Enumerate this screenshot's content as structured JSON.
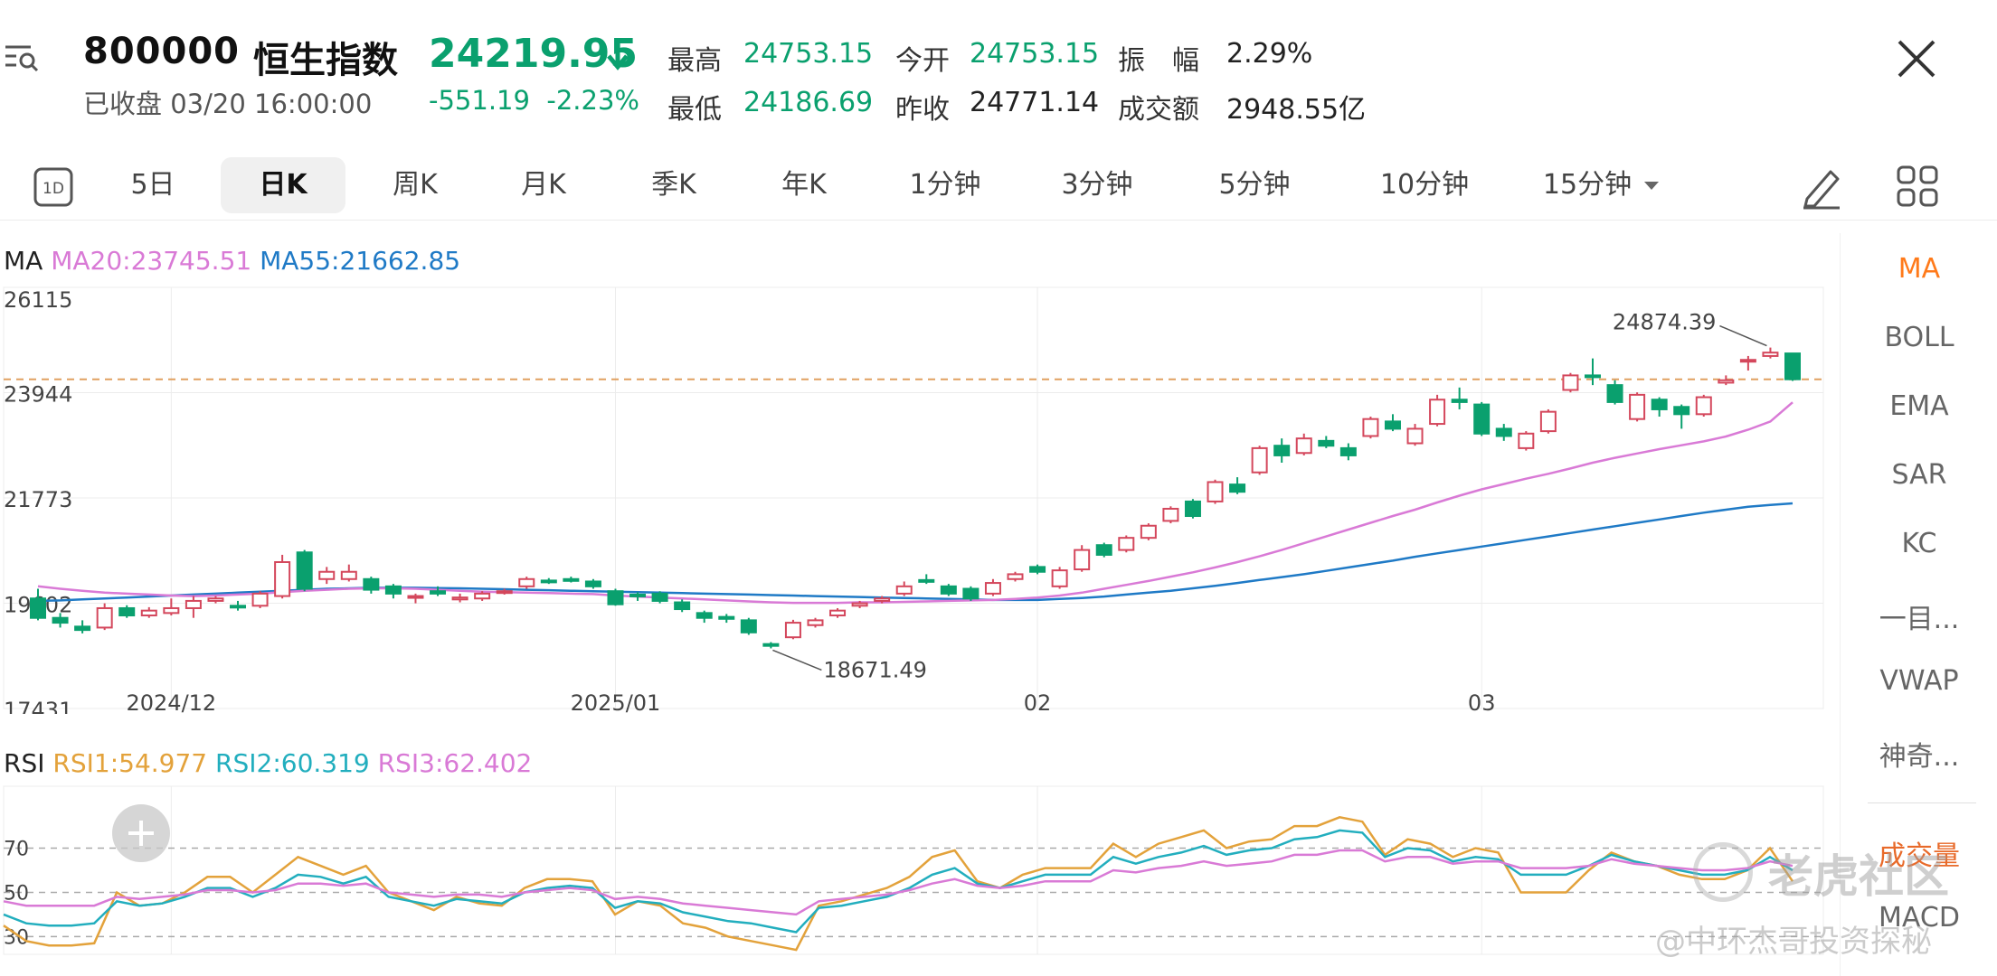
{
  "header": {
    "code": "800000",
    "name": "恒生指数",
    "status": "已收盘",
    "time": "03/20 16:00:00",
    "price": "24219.95",
    "change": "-551.19",
    "change_pct": "-2.23%",
    "stats": [
      {
        "label": "最高",
        "value": "24753.15"
      },
      {
        "label": "今开",
        "value": "24753.15"
      },
      {
        "label": "振　幅",
        "value": "2.29%"
      },
      {
        "label": "最低",
        "value": "24186.69"
      },
      {
        "label": "昨收",
        "value": "24771.14"
      },
      {
        "label": "成交额",
        "value": "2948.55亿"
      }
    ],
    "colors": {
      "down": "#0aa06e",
      "up": "#d4475c"
    }
  },
  "toolbar": {
    "tabs": [
      "5日",
      "日K",
      "周K",
      "月K",
      "季K",
      "年K",
      "1分钟",
      "3分钟",
      "5分钟",
      "10分钟",
      "15分钟"
    ],
    "active_tab": "日K",
    "oned_label": "1D"
  },
  "indicators": {
    "items": [
      "MA",
      "BOLL",
      "EMA",
      "SAR",
      "KC",
      "一目...",
      "VWAP",
      "神奇...",
      "成交量",
      "MACD"
    ],
    "active": "MA"
  },
  "ma_legend": {
    "label": "MA",
    "ma20": "MA20:23745.51",
    "ma55": "MA55:21662.85",
    "ma20_color": "#d97ad6",
    "ma55_color": "#1f7ac6"
  },
  "rsi_legend": {
    "label": "RSI",
    "rsi1": "RSI1:54.977",
    "rsi2": "RSI2:60.319",
    "rsi3": "RSI3:62.402",
    "rsi1_color": "#e3a23b",
    "rsi2_color": "#22aebe",
    "rsi3_color": "#d97ad6"
  },
  "watermark": {
    "brand": "老虎社区",
    "author": "@中环杰哥投资探秘"
  },
  "chart_data": [
    {
      "type": "candlestick",
      "y_ticks": [
        26115,
        23944,
        21773,
        19602,
        17431
      ],
      "y_tick_labels": [
        "26115",
        "23944",
        "21773",
        "19602",
        "17431"
      ],
      "ylim": [
        17431,
        26115
      ],
      "x_tick_labels": [
        {
          "label": "2024/12",
          "index": 6
        },
        {
          "label": "2025/01",
          "index": 26
        },
        {
          "label": "02",
          "index": 45
        },
        {
          "label": "03",
          "index": 65
        }
      ],
      "high_annotation": "24874.39",
      "low_annotation": "18671.49",
      "reference_line": 24219.95,
      "candles": [
        {
          "o": 19700,
          "c": 19300,
          "h": 19900,
          "l": 19250
        },
        {
          "o": 19300,
          "c": 19200,
          "h": 19400,
          "l": 19100
        },
        {
          "o": 19120,
          "c": 19050,
          "h": 19250,
          "l": 18980
        },
        {
          "o": 19100,
          "c": 19500,
          "h": 19600,
          "l": 19050
        },
        {
          "o": 19500,
          "c": 19350,
          "h": 19560,
          "l": 19300
        },
        {
          "o": 19350,
          "c": 19450,
          "h": 19520,
          "l": 19300
        },
        {
          "o": 19400,
          "c": 19500,
          "h": 19700,
          "l": 19350
        },
        {
          "o": 19500,
          "c": 19650,
          "h": 19750,
          "l": 19300
        },
        {
          "o": 19650,
          "c": 19700,
          "h": 19750,
          "l": 19600
        },
        {
          "o": 19550,
          "c": 19520,
          "h": 19650,
          "l": 19450
        },
        {
          "o": 19550,
          "c": 19800,
          "h": 19850,
          "l": 19500
        },
        {
          "o": 19750,
          "c": 20450,
          "h": 20600,
          "l": 19700
        },
        {
          "o": 20650,
          "c": 19900,
          "h": 20700,
          "l": 19850
        },
        {
          "o": 20100,
          "c": 20250,
          "h": 20350,
          "l": 20000
        },
        {
          "o": 20100,
          "c": 20250,
          "h": 20400,
          "l": 20050
        },
        {
          "o": 20100,
          "c": 19880,
          "h": 20150,
          "l": 19800
        },
        {
          "o": 19950,
          "c": 19800,
          "h": 20000,
          "l": 19700
        },
        {
          "o": 19720,
          "c": 19750,
          "h": 19800,
          "l": 19600
        },
        {
          "o": 19850,
          "c": 19800,
          "h": 19950,
          "l": 19750
        },
        {
          "o": 19680,
          "c": 19720,
          "h": 19800,
          "l": 19620
        },
        {
          "o": 19700,
          "c": 19800,
          "h": 19850,
          "l": 19650
        },
        {
          "o": 19820,
          "c": 19850,
          "h": 19900,
          "l": 19780
        },
        {
          "o": 19950,
          "c": 20100,
          "h": 20150,
          "l": 19900
        },
        {
          "o": 20070,
          "c": 20050,
          "h": 20120,
          "l": 20000
        },
        {
          "o": 20100,
          "c": 20080,
          "h": 20150,
          "l": 20030
        },
        {
          "o": 20050,
          "c": 19950,
          "h": 20100,
          "l": 19900
        },
        {
          "o": 19850,
          "c": 19580,
          "h": 19900,
          "l": 19550
        },
        {
          "o": 19780,
          "c": 19750,
          "h": 19830,
          "l": 19650
        },
        {
          "o": 19800,
          "c": 19650,
          "h": 19850,
          "l": 19600
        },
        {
          "o": 19620,
          "c": 19480,
          "h": 19680,
          "l": 19420
        },
        {
          "o": 19400,
          "c": 19300,
          "h": 19450,
          "l": 19200
        },
        {
          "o": 19320,
          "c": 19280,
          "h": 19380,
          "l": 19200
        },
        {
          "o": 19250,
          "c": 19000,
          "h": 19300,
          "l": 18950
        },
        {
          "o": 18760,
          "c": 18740,
          "h": 18800,
          "l": 18671
        },
        {
          "o": 18900,
          "c": 19200,
          "h": 19260,
          "l": 18860
        },
        {
          "o": 19150,
          "c": 19250,
          "h": 19300,
          "l": 19100
        },
        {
          "o": 19350,
          "c": 19450,
          "h": 19500,
          "l": 19300
        },
        {
          "o": 19550,
          "c": 19600,
          "h": 19650,
          "l": 19500
        },
        {
          "o": 19650,
          "c": 19700,
          "h": 19750,
          "l": 19600
        },
        {
          "o": 19800,
          "c": 19950,
          "h": 20050,
          "l": 19750
        },
        {
          "o": 20080,
          "c": 20050,
          "h": 20200,
          "l": 20000
        },
        {
          "o": 19950,
          "c": 19800,
          "h": 20000,
          "l": 19750
        },
        {
          "o": 19900,
          "c": 19700,
          "h": 19950,
          "l": 19650
        },
        {
          "o": 19800,
          "c": 20020,
          "h": 20100,
          "l": 19750
        },
        {
          "o": 20100,
          "c": 20200,
          "h": 20250,
          "l": 20050
        },
        {
          "o": 20350,
          "c": 20250,
          "h": 20400,
          "l": 20200
        },
        {
          "o": 19950,
          "c": 20280,
          "h": 20350,
          "l": 19900
        },
        {
          "o": 20300,
          "c": 20700,
          "h": 20800,
          "l": 20250
        },
        {
          "o": 20800,
          "c": 20600,
          "h": 20850,
          "l": 20550
        },
        {
          "o": 20700,
          "c": 20950,
          "h": 21000,
          "l": 20650
        },
        {
          "o": 20950,
          "c": 21200,
          "h": 21250,
          "l": 20900
        },
        {
          "o": 21300,
          "c": 21550,
          "h": 21600,
          "l": 21250
        },
        {
          "o": 21700,
          "c": 21400,
          "h": 21750,
          "l": 21350
        },
        {
          "o": 21700,
          "c": 22100,
          "h": 22150,
          "l": 21650
        },
        {
          "o": 22050,
          "c": 21900,
          "h": 22200,
          "l": 21850
        },
        {
          "o": 22300,
          "c": 22800,
          "h": 22850,
          "l": 22250
        },
        {
          "o": 22850,
          "c": 22650,
          "h": 23000,
          "l": 22500
        },
        {
          "o": 22700,
          "c": 23000,
          "h": 23100,
          "l": 22650
        },
        {
          "o": 22950,
          "c": 22850,
          "h": 23050,
          "l": 22800
        },
        {
          "o": 22800,
          "c": 22650,
          "h": 22900,
          "l": 22550
        },
        {
          "o": 23050,
          "c": 23400,
          "h": 23450,
          "l": 23000
        },
        {
          "o": 23350,
          "c": 23200,
          "h": 23500,
          "l": 23150
        },
        {
          "o": 22900,
          "c": 23200,
          "h": 23300,
          "l": 22850
        },
        {
          "o": 23300,
          "c": 23800,
          "h": 23900,
          "l": 23250
        },
        {
          "o": 23800,
          "c": 23750,
          "h": 24050,
          "l": 23600
        },
        {
          "o": 23700,
          "c": 23100,
          "h": 23750,
          "l": 23050
        },
        {
          "o": 23200,
          "c": 23050,
          "h": 23300,
          "l": 22950
        },
        {
          "o": 22800,
          "c": 23100,
          "h": 23150,
          "l": 22750
        },
        {
          "o": 23150,
          "c": 23550,
          "h": 23600,
          "l": 23100
        },
        {
          "o": 24000,
          "c": 24300,
          "h": 24350,
          "l": 23950
        },
        {
          "o": 24300,
          "c": 24280,
          "h": 24650,
          "l": 24100
        },
        {
          "o": 24100,
          "c": 23750,
          "h": 24200,
          "l": 23700
        },
        {
          "o": 23400,
          "c": 23900,
          "h": 23950,
          "l": 23350
        },
        {
          "o": 23800,
          "c": 23600,
          "h": 23850,
          "l": 23450
        },
        {
          "o": 23650,
          "c": 23500,
          "h": 23700,
          "l": 23200
        },
        {
          "o": 23500,
          "c": 23850,
          "h": 23900,
          "l": 23450
        },
        {
          "o": 24150,
          "c": 24200,
          "h": 24300,
          "l": 24100
        },
        {
          "o": 24600,
          "c": 24620,
          "h": 24700,
          "l": 24400
        },
        {
          "o": 24700,
          "c": 24770,
          "h": 24874,
          "l": 24650
        },
        {
          "o": 24753,
          "c": 24220,
          "h": 24753,
          "l": 24186
        }
      ],
      "ma20": [
        19950,
        19900,
        19860,
        19820,
        19800,
        19780,
        19760,
        19750,
        19760,
        19780,
        19800,
        19830,
        19860,
        19880,
        19900,
        19910,
        19910,
        19900,
        19880,
        19860,
        19840,
        19830,
        19820,
        19810,
        19800,
        19790,
        19760,
        19740,
        19720,
        19700,
        19680,
        19660,
        19640,
        19620,
        19610,
        19610,
        19610,
        19620,
        19620,
        19630,
        19640,
        19650,
        19660,
        19670,
        19690,
        19720,
        19760,
        19820,
        19900,
        19980,
        20060,
        20150,
        20240,
        20340,
        20450,
        20570,
        20700,
        20840,
        20980,
        21120,
        21260,
        21400,
        21530,
        21680,
        21820,
        21950,
        22060,
        22170,
        22270,
        22380,
        22500,
        22600,
        22690,
        22780,
        22860,
        22940,
        23040,
        23180,
        23350,
        23745
      ],
      "ma55": [
        19650,
        19660,
        19680,
        19700,
        19720,
        19740,
        19760,
        19780,
        19800,
        19820,
        19840,
        19860,
        19880,
        19900,
        19910,
        19920,
        19920,
        19920,
        19915,
        19910,
        19900,
        19890,
        19880,
        19870,
        19860,
        19850,
        19840,
        19830,
        19820,
        19810,
        19800,
        19790,
        19780,
        19770,
        19760,
        19750,
        19740,
        19730,
        19720,
        19710,
        19700,
        19690,
        19680,
        19670,
        19670,
        19670,
        19690,
        19710,
        19740,
        19780,
        19820,
        19860,
        19910,
        19960,
        20020,
        20080,
        20140,
        20200,
        20270,
        20340,
        20410,
        20480,
        20560,
        20630,
        20700,
        20770,
        20840,
        20910,
        20980,
        21050,
        21120,
        21190,
        21260,
        21330,
        21400,
        21470,
        21530,
        21590,
        21630,
        21662
      ]
    },
    {
      "type": "line",
      "title": "RSI",
      "y_tick_labels": [
        "70",
        "50",
        "30"
      ],
      "ylim": [
        22,
        98
      ],
      "series": [
        {
          "name": "RSI1",
          "color": "#e3a23b",
          "values": [
            35,
            28,
            26,
            26,
            27,
            50,
            44,
            45,
            50,
            57,
            57,
            50,
            58,
            66,
            62,
            58,
            62,
            50,
            46,
            42,
            48,
            45,
            44,
            52,
            56,
            56,
            55,
            40,
            46,
            44,
            36,
            34,
            30,
            28,
            26,
            24,
            44,
            46,
            49,
            52,
            57,
            66,
            69,
            55,
            52,
            58,
            61,
            61,
            61,
            72,
            66,
            72,
            75,
            78,
            70,
            73,
            74,
            80,
            80,
            84,
            82,
            67,
            74,
            72,
            66,
            70,
            68,
            50,
            50,
            50,
            60,
            68,
            64,
            62,
            58,
            56,
            56,
            60,
            70,
            55
          ],
          "_note": "RSI1 approx"
        },
        {
          "name": "RSI2",
          "color": "#22aebe",
          "values": [
            40,
            36,
            35,
            35,
            36,
            46,
            44,
            45,
            48,
            52,
            52,
            48,
            52,
            58,
            57,
            54,
            57,
            48,
            46,
            44,
            47,
            46,
            45,
            50,
            52,
            53,
            52,
            43,
            46,
            45,
            41,
            39,
            37,
            36,
            34,
            32,
            43,
            44,
            46,
            48,
            52,
            58,
            61,
            54,
            52,
            55,
            58,
            58,
            58,
            66,
            63,
            66,
            68,
            71,
            67,
            69,
            70,
            74,
            75,
            78,
            77,
            66,
            70,
            69,
            64,
            66,
            65,
            58,
            58,
            58,
            62,
            67,
            64,
            62,
            60,
            58,
            58,
            60,
            66,
            60
          ]
        },
        {
          "name": "RSI3",
          "color": "#d97ad6",
          "values": [
            46,
            44,
            44,
            44,
            44,
            48,
            47,
            48,
            49,
            51,
            51,
            50,
            51,
            54,
            54,
            53,
            54,
            50,
            49,
            48,
            49,
            49,
            48,
            50,
            51,
            52,
            51,
            47,
            48,
            47,
            45,
            44,
            43,
            42,
            41,
            40,
            46,
            47,
            48,
            49,
            51,
            54,
            56,
            53,
            52,
            53,
            55,
            55,
            55,
            60,
            59,
            61,
            62,
            64,
            62,
            63,
            64,
            67,
            67,
            69,
            69,
            64,
            66,
            66,
            63,
            64,
            64,
            61,
            61,
            61,
            62,
            65,
            63,
            62,
            61,
            60,
            60,
            61,
            64,
            62
          ]
        }
      ]
    }
  ]
}
